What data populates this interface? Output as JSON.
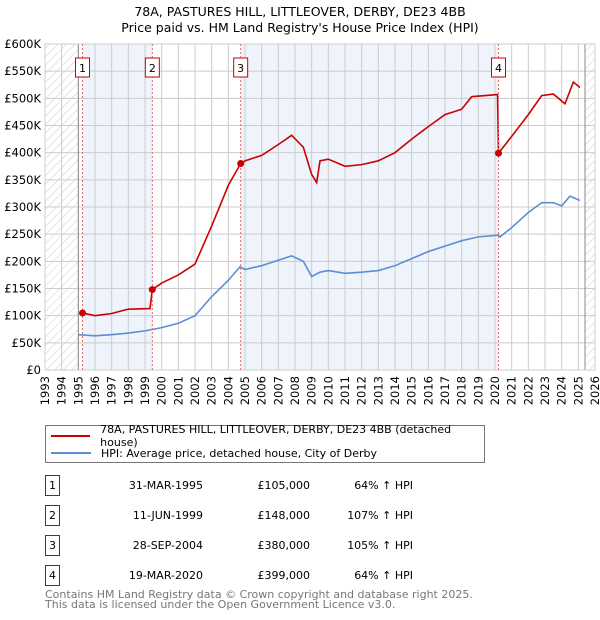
{
  "title_line1": "78A, PASTURES HILL, LITTLEOVER, DERBY, DE23 4BB",
  "title_line2": "Price paid vs. HM Land Registry's House Price Index (HPI)",
  "colors": {
    "property": "#cc0000",
    "hpi": "#5b8fd4",
    "shade": "#eef3fc",
    "grid": "#cccccc"
  },
  "chart_data": {
    "type": "line",
    "xlim": [
      1993,
      2026
    ],
    "ylim": [
      0,
      600000
    ],
    "ytick_labels": [
      "£0",
      "£50K",
      "£100K",
      "£150K",
      "£200K",
      "£250K",
      "£300K",
      "£350K",
      "£400K",
      "£450K",
      "£500K",
      "£550K",
      "£600K"
    ],
    "xtick_labels": [
      "1993",
      "1994",
      "1995",
      "1996",
      "1997",
      "1998",
      "1999",
      "2000",
      "2001",
      "2002",
      "2003",
      "2004",
      "2005",
      "2006",
      "2007",
      "2008",
      "2009",
      "2010",
      "2011",
      "2012",
      "2013",
      "2014",
      "2015",
      "2016",
      "2017",
      "2018",
      "2019",
      "2020",
      "2021",
      "2022",
      "2023",
      "2024",
      "2025",
      "2026"
    ],
    "grid": true,
    "series": [
      {
        "name": "78A, PASTURES HILL, LITTLEOVER, DERBY, DE23 4BB (detached house)",
        "x": [
          1995.25,
          1996,
          1997,
          1998,
          1999.3,
          1999.44,
          2000,
          2001,
          2002,
          2003,
          2004,
          2004.74,
          2005,
          2006,
          2007,
          2007.8,
          2008.5,
          2009,
          2009.3,
          2009.5,
          2010,
          2011,
          2012,
          2013,
          2014,
          2015,
          2016,
          2017,
          2018,
          2018.6,
          2020.15,
          2020.21,
          2021,
          2022,
          2022.8,
          2023.5,
          2024.2,
          2024.7,
          2025.1
        ],
        "y": [
          105000,
          100000,
          104000,
          112000,
          113000,
          148000,
          160000,
          175000,
          195000,
          265000,
          340000,
          380000,
          385000,
          395000,
          415000,
          432000,
          410000,
          360000,
          345000,
          385000,
          388000,
          375000,
          378000,
          385000,
          400000,
          425000,
          448000,
          470000,
          480000,
          503000,
          507000,
          399000,
          430000,
          470000,
          505000,
          508000,
          490000,
          530000,
          520000
        ]
      },
      {
        "name": "HPI: Average price, detached house, City of Derby",
        "x": [
          1995,
          1996,
          1997,
          1998,
          1999,
          2000,
          2001,
          2002,
          2003,
          2004,
          2004.7,
          2005,
          2006,
          2007,
          2007.8,
          2008.5,
          2009,
          2009.5,
          2010,
          2011,
          2012,
          2013,
          2014,
          2015,
          2016,
          2017,
          2018,
          2019,
          2020.2,
          2020.3,
          2021,
          2022,
          2022.8,
          2023.5,
          2024,
          2024.5,
          2025.1
        ],
        "y": [
          65000,
          63000,
          65000,
          68000,
          72000,
          78000,
          86000,
          100000,
          135000,
          165000,
          190000,
          185000,
          192000,
          202000,
          210000,
          200000,
          172000,
          180000,
          183000,
          178000,
          180000,
          183000,
          192000,
          205000,
          218000,
          228000,
          238000,
          245000,
          248000,
          245000,
          262000,
          290000,
          308000,
          308000,
          302000,
          320000,
          312000
        ]
      }
    ],
    "sales": [
      {
        "label": "1",
        "x": 1995.25,
        "y": 105000
      },
      {
        "label": "2",
        "x": 1999.44,
        "y": 148000
      },
      {
        "label": "3",
        "x": 2004.74,
        "y": 380000
      },
      {
        "label": "4",
        "x": 2020.21,
        "y": 399000
      }
    ]
  },
  "table": [
    {
      "num": "1",
      "date": "31-MAR-1995",
      "price": "£105,000",
      "hpi": "64% ↑ HPI"
    },
    {
      "num": "2",
      "date": "11-JUN-1999",
      "price": "£148,000",
      "hpi": "107% ↑ HPI"
    },
    {
      "num": "3",
      "date": "28-SEP-2004",
      "price": "£380,000",
      "hpi": "105% ↑ HPI"
    },
    {
      "num": "4",
      "date": "19-MAR-2020",
      "price": "£399,000",
      "hpi": "64% ↑ HPI"
    }
  ],
  "footer_line1": "Contains HM Land Registry data © Crown copyright and database right 2025.",
  "footer_line2": "This data is licensed under the Open Government Licence v3.0."
}
